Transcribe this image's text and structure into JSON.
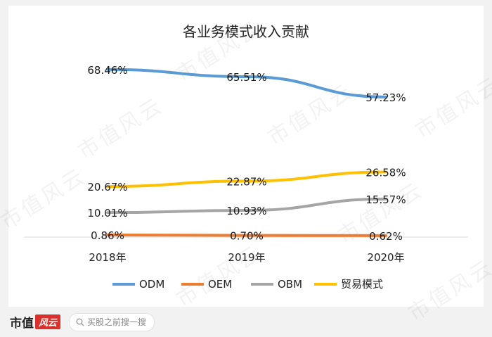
{
  "watermark_text": "市值风云",
  "footer": {
    "brand": "市值",
    "brand_badge": "风云",
    "search_placeholder": "买股之前搜一搜"
  },
  "chart_data": {
    "type": "line",
    "title": "各业务模式收入贡献",
    "categories": [
      "2018年",
      "2019年",
      "2020年"
    ],
    "ylim": [
      0,
      75
    ],
    "y_axis_visible": false,
    "grid": false,
    "legend_position": "bottom",
    "series": [
      {
        "name": "ODM",
        "color": "#5b9bd5",
        "values": [
          68.46,
          65.51,
          57.23
        ],
        "labels": [
          "68.46%",
          "65.51%",
          "57.23%"
        ]
      },
      {
        "name": "OEM",
        "color": "#ed7d31",
        "values": [
          0.86,
          0.7,
          0.62
        ],
        "labels": [
          "0.86%",
          "0.70%",
          "0.62%"
        ]
      },
      {
        "name": "OBM",
        "color": "#a5a5a5",
        "values": [
          10.01,
          10.93,
          15.57
        ],
        "labels": [
          "10.01%",
          "10.93%",
          "15.57%"
        ]
      },
      {
        "name": "贸易模式",
        "color": "#ffc000",
        "values": [
          20.67,
          22.87,
          26.58
        ],
        "labels": [
          "20.67%",
          "22.87%",
          "26.58%"
        ]
      }
    ]
  }
}
